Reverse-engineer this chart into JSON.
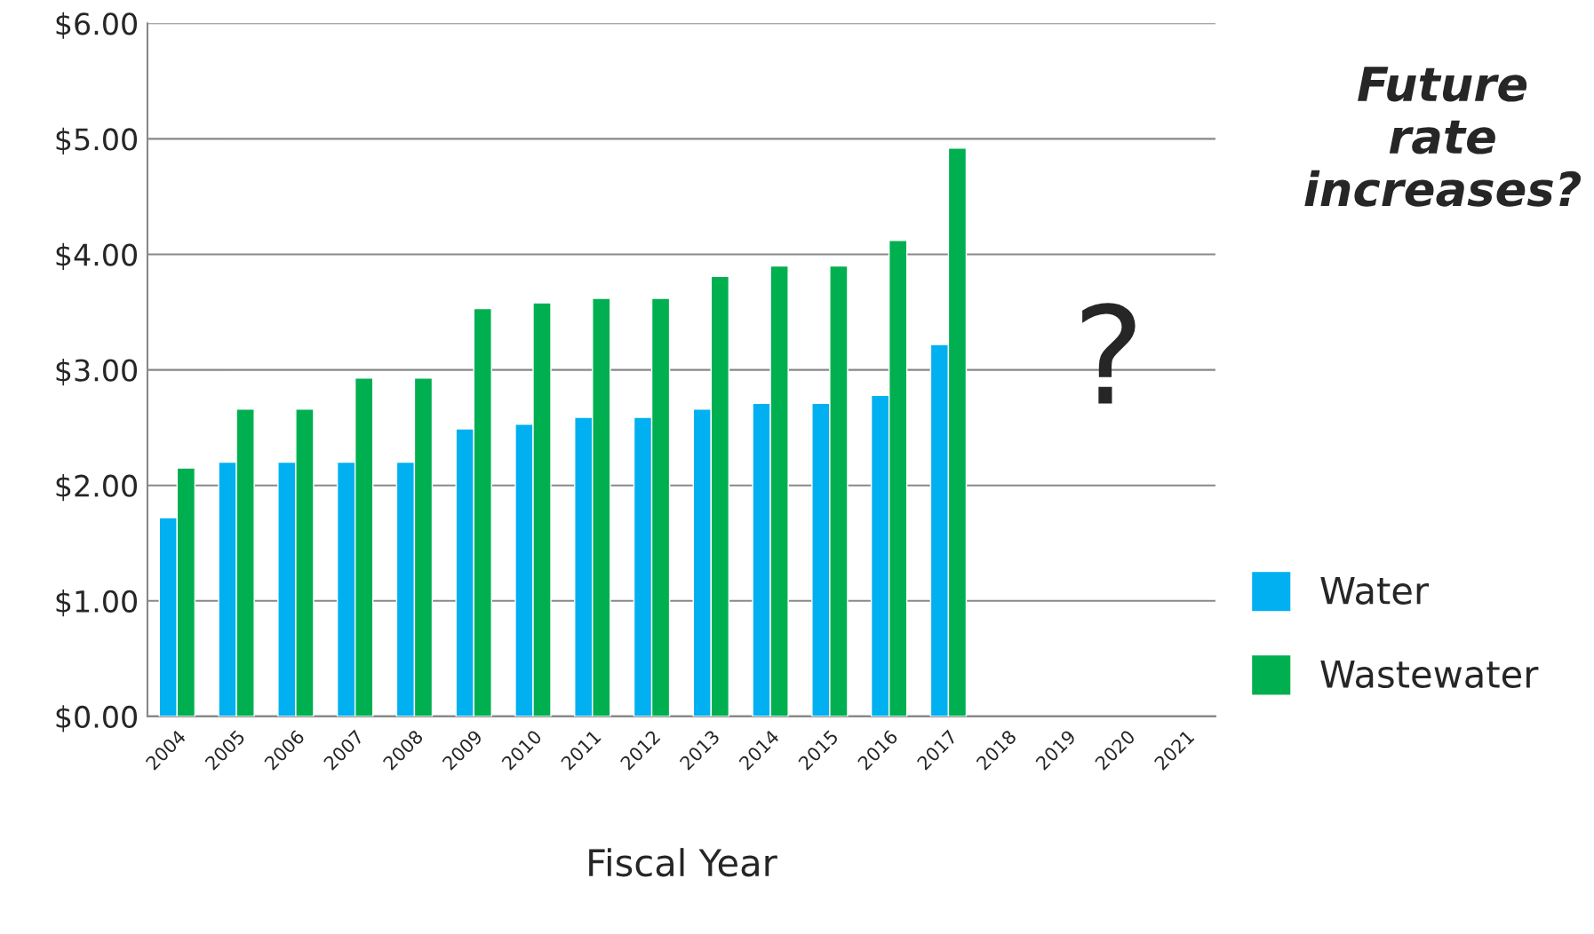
{
  "chart_data": {
    "type": "bar",
    "xlabel": "Fiscal Year",
    "categories": [
      "2004",
      "2005",
      "2006",
      "2007",
      "2008",
      "2009",
      "2010",
      "2011",
      "2012",
      "2013",
      "2014",
      "2015",
      "2016",
      "2017",
      "2018",
      "2019",
      "2020",
      "2021"
    ],
    "series": [
      {
        "name": "Water",
        "color": "#00b0f0",
        "values": [
          1.72,
          2.2,
          2.2,
          2.2,
          2.2,
          2.49,
          2.53,
          2.59,
          2.59,
          2.66,
          2.71,
          2.71,
          2.78,
          3.22,
          null,
          null,
          null,
          null
        ]
      },
      {
        "name": "Wastewater",
        "color": "#00b050",
        "values": [
          2.15,
          2.66,
          2.66,
          2.93,
          2.93,
          3.53,
          3.58,
          3.62,
          3.62,
          3.81,
          3.9,
          3.9,
          4.12,
          4.92,
          null,
          null,
          null,
          null
        ]
      }
    ],
    "ylim": [
      0,
      6
    ],
    "yticks": [
      {
        "value": 0,
        "label": "$0.00"
      },
      {
        "value": 1,
        "label": "$1.00"
      },
      {
        "value": 2,
        "label": "$2.00"
      },
      {
        "value": 3,
        "label": "$3.00"
      },
      {
        "value": 4,
        "label": "$4.00"
      },
      {
        "value": 5,
        "label": "$5.00"
      },
      {
        "value": 6,
        "label": "$6.00"
      }
    ],
    "grid": "y",
    "legend": "right",
    "annotations": [
      "Future rate increases?",
      "?"
    ]
  }
}
